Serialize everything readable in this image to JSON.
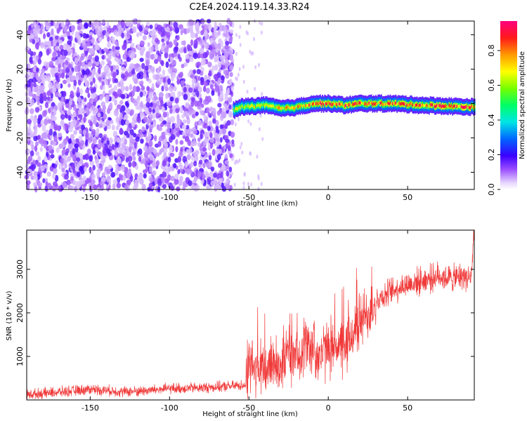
{
  "title": "C2E4.2024.119.14.33.R24",
  "chart_data": [
    {
      "type": "heatmap",
      "xlabel": "Height of straight line (km)",
      "ylabel": "Frequency (Hz)",
      "xlim": [
        -190,
        92
      ],
      "ylim": [
        -50,
        48
      ],
      "xticks": [
        -150,
        -100,
        -50,
        0,
        50
      ],
      "yticks": [
        -40,
        -20,
        0,
        20,
        40
      ],
      "grid": false,
      "colorbar": {
        "label": "Normalized spectral amplitude",
        "range": [
          0,
          0.97
        ],
        "ticks": [
          0.0,
          0.2,
          0.4,
          0.6,
          0.8
        ],
        "colormap": "rainbow (white-violet-blue-cyan-green-yellow-red-magenta)"
      },
      "regions": [
        {
          "x_range": [
            -190,
            -60
          ],
          "y_range": [
            -50,
            48
          ],
          "amplitude": [
            0.0,
            0.15
          ],
          "pattern": "scattered noise speckle"
        },
        {
          "x_range": [
            -60,
            92
          ],
          "y_center_hz": [
            {
              "x": -60,
              "y": -4
            },
            {
              "x": -55,
              "y": -2
            },
            {
              "x": -40,
              "y": -1
            },
            {
              "x": -30,
              "y": -3
            },
            {
              "x": -20,
              "y": -2
            },
            {
              "x": -10,
              "y": 0
            },
            {
              "x": 0,
              "y": 0
            },
            {
              "x": 10,
              "y": -1
            },
            {
              "x": 20,
              "y": 0
            },
            {
              "x": 40,
              "y": 0
            },
            {
              "x": 60,
              "y": -1
            },
            {
              "x": 90,
              "y": -2
            }
          ],
          "band_halfwidth_hz": 3,
          "amplitude": [
            0.3,
            0.97
          ],
          "pattern": "narrow band"
        }
      ]
    },
    {
      "type": "line",
      "xlabel": "Height of straight line (km)",
      "ylabel": "SNR (10 * v/v)",
      "xlim": [
        -190,
        92
      ],
      "ylim": [
        0,
        3900
      ],
      "xticks": [
        -150,
        -100,
        -50,
        0,
        50
      ],
      "yticks": [
        1000,
        2000,
        3000
      ],
      "color": "#f03a3a",
      "grid": false,
      "series": [
        {
          "x": [
            -190,
            -180,
            -170,
            -160,
            -150,
            -140,
            -130,
            -120,
            -110,
            -100,
            -90,
            -80,
            -70,
            -60,
            -52,
            -50,
            -45,
            -40,
            -35,
            -30,
            -25,
            -20,
            -15,
            -10,
            -5,
            0,
            5,
            10,
            15,
            20,
            25,
            30,
            35,
            40,
            45,
            50,
            55,
            60,
            65,
            70,
            75,
            80,
            85,
            90,
            92
          ],
          "values": [
            120,
            150,
            180,
            210,
            250,
            220,
            190,
            200,
            230,
            260,
            270,
            280,
            300,
            320,
            350,
            800,
            700,
            650,
            900,
            800,
            1100,
            900,
            1300,
            1200,
            1000,
            1200,
            1300,
            1100,
            1500,
            1800,
            2000,
            2300,
            2400,
            2500,
            2600,
            2650,
            2700,
            2750,
            2800,
            2850,
            2800,
            2800,
            2850,
            2800,
            3900
          ],
          "noise_amplitude": 200
        }
      ]
    }
  ]
}
